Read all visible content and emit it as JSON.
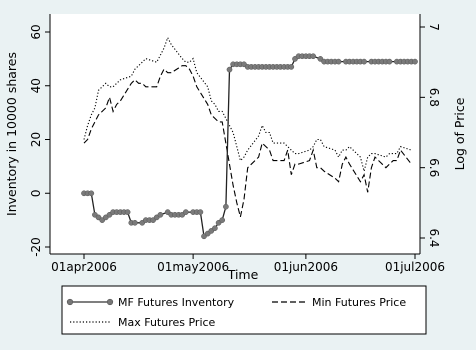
{
  "chart_data": {
    "type": "line",
    "xlabel": "Time",
    "ylabel_left": "Inventory in 10000 shares",
    "ylabel_right": "Log of Price",
    "x_ticks": [
      "01apr2006",
      "01may2006",
      "01jun2006",
      "01jul2006"
    ],
    "y_left_ticks": [
      "-20",
      "0",
      "20",
      "40",
      "60"
    ],
    "y_right_ticks": [
      "6.4",
      "6.6",
      "6.8",
      "7"
    ],
    "x_range_days": [
      0,
      91
    ],
    "y_left_range": [
      -20,
      62
    ],
    "y_right_range": [
      6.4,
      6.99
    ],
    "grid": false,
    "legend_position": "bottom",
    "series": [
      {
        "name": "MF Futures Inventory",
        "axis": "left",
        "style": "solid-with-markers",
        "days": [
          0,
          1,
          2,
          3,
          4,
          5,
          6,
          7,
          8,
          9,
          10,
          11,
          12,
          13,
          14,
          16,
          17,
          18,
          19,
          20,
          21,
          23,
          24,
          25,
          26,
          27,
          28,
          30,
          31,
          32,
          33,
          34,
          35,
          36,
          37,
          38,
          39,
          40,
          41,
          42,
          43,
          44,
          45,
          46,
          47,
          48,
          49,
          50,
          51,
          52,
          53,
          54,
          55,
          56,
          57,
          58,
          59,
          60,
          61,
          62,
          63,
          65,
          66,
          67,
          68,
          69,
          70,
          72,
          73,
          74,
          75,
          76,
          77,
          79,
          80,
          81,
          82,
          83,
          84,
          86,
          87,
          88,
          89,
          90,
          91
        ],
        "values": [
          0,
          0,
          0,
          -8,
          -9,
          -10,
          -9,
          -8,
          -7,
          -7,
          -7,
          -7,
          -7,
          -11,
          -11,
          -11,
          -10,
          -10,
          -10,
          -9,
          -8,
          -7,
          -8,
          -8,
          -8,
          -8,
          -7,
          -7,
          -7,
          -7,
          -16,
          -15,
          -14,
          -13,
          -11,
          -10,
          -5,
          46,
          48,
          48,
          48,
          48,
          47,
          47,
          47,
          47,
          47,
          47,
          47,
          47,
          47,
          47,
          47,
          47,
          47,
          50,
          51,
          51,
          51,
          51,
          51,
          50,
          49,
          49,
          49,
          49,
          49,
          49,
          49,
          49,
          49,
          49,
          49,
          49,
          49,
          49,
          49,
          49,
          49,
          49,
          49,
          49,
          49,
          49,
          49
        ]
      },
      {
        "name": "Min Futures Price",
        "axis": "right",
        "style": "dashed",
        "days": [
          0,
          1,
          2,
          3,
          4,
          5,
          6,
          7,
          8,
          9,
          10,
          13,
          14,
          15,
          16,
          17,
          20,
          21,
          22,
          23,
          24,
          27,
          28,
          29,
          30,
          31,
          34,
          35,
          36,
          37,
          38,
          41,
          42,
          43,
          44,
          45,
          48,
          49,
          50,
          51,
          52,
          55,
          56,
          57,
          58,
          59,
          62,
          63,
          64,
          65,
          66,
          69,
          70,
          71,
          72,
          73,
          76,
          77,
          78,
          79,
          80,
          83,
          84,
          85,
          86,
          87,
          90
        ],
        "values": [
          6.67,
          6.68,
          6.71,
          6.73,
          6.75,
          6.76,
          6.77,
          6.8,
          6.76,
          6.78,
          6.79,
          6.84,
          6.85,
          6.84,
          6.84,
          6.83,
          6.83,
          6.86,
          6.88,
          6.87,
          6.87,
          6.89,
          6.89,
          6.88,
          6.86,
          6.83,
          6.78,
          6.75,
          6.74,
          6.73,
          6.73,
          6.55,
          6.5,
          6.46,
          6.51,
          6.6,
          6.63,
          6.67,
          6.66,
          6.65,
          6.62,
          6.62,
          6.65,
          6.58,
          6.61,
          6.61,
          6.62,
          6.65,
          6.6,
          6.6,
          6.59,
          6.57,
          6.56,
          6.61,
          6.63,
          6.61,
          6.56,
          6.58,
          6.53,
          6.6,
          6.63,
          6.6,
          6.61,
          6.62,
          6.62,
          6.65,
          6.61
        ]
      },
      {
        "name": "Max Futures Price",
        "axis": "right",
        "style": "dotted",
        "days": [
          0,
          1,
          2,
          3,
          4,
          5,
          6,
          7,
          8,
          9,
          10,
          13,
          14,
          15,
          16,
          17,
          20,
          21,
          22,
          23,
          24,
          27,
          28,
          29,
          30,
          31,
          34,
          35,
          36,
          37,
          38,
          41,
          42,
          43,
          44,
          45,
          48,
          49,
          50,
          51,
          52,
          55,
          56,
          57,
          58,
          59,
          62,
          63,
          64,
          65,
          66,
          69,
          70,
          71,
          72,
          73,
          76,
          77,
          78,
          79,
          80,
          83,
          84,
          85,
          86,
          87,
          90
        ],
        "values": [
          6.68,
          6.72,
          6.75,
          6.77,
          6.82,
          6.83,
          6.84,
          6.83,
          6.83,
          6.84,
          6.85,
          6.86,
          6.88,
          6.89,
          6.9,
          6.91,
          6.9,
          6.92,
          6.94,
          6.97,
          6.95,
          6.91,
          6.9,
          6.9,
          6.91,
          6.87,
          6.83,
          6.79,
          6.78,
          6.76,
          6.76,
          6.7,
          6.66,
          6.62,
          6.63,
          6.65,
          6.69,
          6.72,
          6.7,
          6.7,
          6.67,
          6.67,
          6.66,
          6.65,
          6.64,
          6.64,
          6.65,
          6.66,
          6.68,
          6.68,
          6.66,
          6.65,
          6.63,
          6.65,
          6.65,
          6.66,
          6.63,
          6.59,
          6.63,
          6.64,
          6.64,
          6.63,
          6.64,
          6.64,
          6.64,
          6.66,
          6.65
        ]
      }
    ]
  }
}
